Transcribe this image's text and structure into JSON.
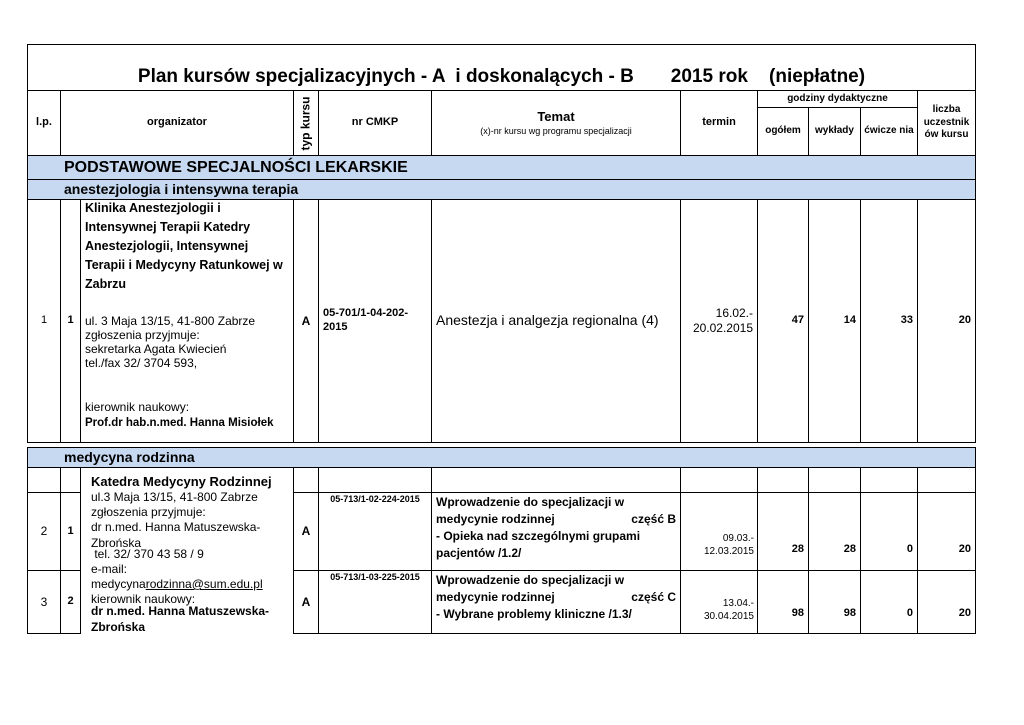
{
  "title": "Plan kursów specjalizacyjnych - A  i doskonalących - B       2015 rok    (niepłatne)",
  "header": {
    "lp": "l.p.",
    "organizator": "organizator",
    "typ": "typ kursu",
    "nr": "nr CMKP",
    "temat": "Temat",
    "temat_sub": "(x)-nr kursu wg programu specjalizacji",
    "termin": "termin",
    "godziny": "godziny dydaktyczne",
    "ogolem": "ogółem",
    "wyklady": "wykłady",
    "cwiczenia": "ćwicze nia",
    "liczba": "liczba uczestnik ów kursu"
  },
  "section": "PODSTAWOWE SPECJALNOŚCI LEKARSKIE",
  "sub1": "anestezjologia i intensywna terapia",
  "row1": {
    "lp": "1",
    "no": "1",
    "org_name": "Klinika  Anestezjologii i Intensywnej Terapii Katedry Anestezjologii, Intensywnej Terapii i Medycyny Ratunkowej w Zabrzu",
    "org_addr": "ul. 3 Maja 13/15, 41-800 Zabrze",
    "org_l2": "zgłoszenia przyjmuje:",
    "org_l3": "sekretarka Agata Kwiecień",
    "org_l4": "tel./fax 32/ 3704 593,",
    "org_l5": "kierownik naukowy:",
    "org_l6": "Prof.dr hab.n.med. Hanna Misiołek",
    "typ": "A",
    "nr": "05-701/1-04-202-2015",
    "temat": "Anestezja i analgezja regionalna (4)",
    "termin": "16.02.- 20.02.2015",
    "ogolem": "47",
    "wyklady": "14",
    "cwiczenia": "33",
    "liczba": "20"
  },
  "sub2": "medycyna rodzinna",
  "org2": {
    "name": "Katedra Medycyny Rodzinnej",
    "l1": "ul.3 Maja 13/15, 41-800 Zabrze",
    "l2": "zgłoszenia przyjmuje:",
    "l3": "dr n.med. Hanna Matuszewska-Zbrońska",
    "l4": " tel. 32/ 370 43 58 / 9",
    "l5": "e-mail:",
    "l6a": "medycyna",
    "l6b": "rodzinna@sum.edu.pl",
    "l7": "kierownik naukowy:",
    "l8": "dr n.med. Hanna Matuszewska-Zbrońska"
  },
  "row2": {
    "lp": "2",
    "no": "1",
    "typ": "A",
    "nr": "05-713/1-02-224-2015",
    "temat1": "Wprowadzenie do specjalizacji w",
    "temat2": "medycynie rodzinnej",
    "czesc": "część B",
    "temat3": "- Opieka nad szczególnymi grupami pacjentów  /1.2/",
    "termin": "09.03.- 12.03.2015",
    "ogolem": "28",
    "wyklady": "28",
    "cwiczenia": "0",
    "liczba": "20"
  },
  "row3": {
    "lp": "3",
    "no": "2",
    "typ": "A",
    "nr": "05-713/1-03-225-2015",
    "temat1": "Wprowadzenie do specjalizacji w",
    "temat2": "medycynie rodzinnej",
    "czesc": "część C",
    "temat3": "- Wybrane problemy kliniczne  /1.3/",
    "termin": "13.04.- 30.04.2015",
    "ogolem": "98",
    "wyklady": "98",
    "cwiczenia": "0",
    "liczba": "20"
  }
}
